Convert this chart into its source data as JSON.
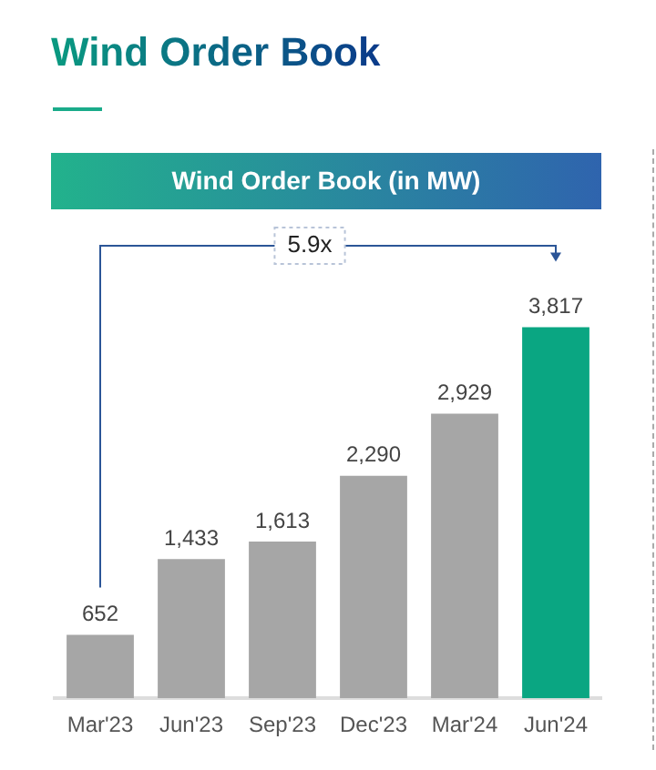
{
  "chart_data": {
    "type": "bar",
    "title": "Wind Order Book",
    "subtitle": "Wind Order Book (in MW)",
    "categories": [
      "Mar'23",
      "Jun'23",
      "Sep'23",
      "Dec'23",
      "Mar'24",
      "Jun'24"
    ],
    "values": [
      652,
      1433,
      1613,
      2290,
      2929,
      3817
    ],
    "colors": [
      "#a6a6a6",
      "#a6a6a6",
      "#a6a6a6",
      "#a6a6a6",
      "#a6a6a6",
      "#0aa682"
    ],
    "value_labels": [
      "652",
      "1,433",
      "1,613",
      "2,290",
      "2,929",
      "3,817"
    ],
    "legend": false,
    "grid": false,
    "tick_labels": "x",
    "annotations": [
      "5.9x"
    ]
  }
}
